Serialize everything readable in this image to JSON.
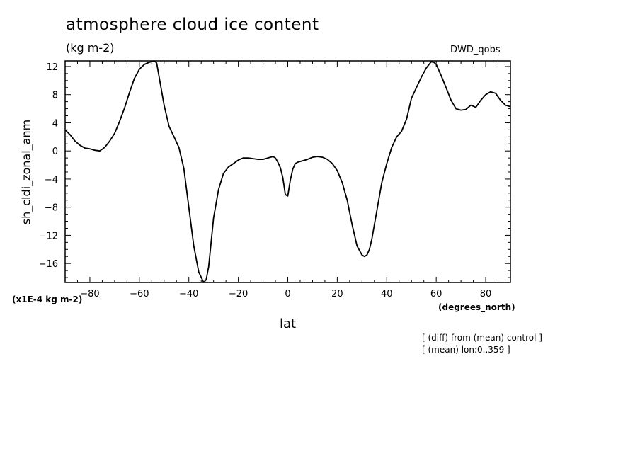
{
  "chart_data": {
    "type": "line",
    "title": "atmosphere cloud ice content",
    "units": "(kg m-2)",
    "source_label": "DWD_qobs",
    "ylabel": "sh_cldi_zonal_anm",
    "yscale_label": "(x1E-4 kg m-2)",
    "xlabel": "lat",
    "xunits": "(degrees_north)",
    "notes": [
      "[ (diff) from (mean) control ]",
      "[ (mean) lon:0..359 ]"
    ],
    "xlim": [
      -90,
      90
    ],
    "ylim": [
      -18.7,
      12.8
    ],
    "xticks": [
      -80,
      -60,
      -40,
      -20,
      0,
      20,
      40,
      60,
      80
    ],
    "yticks": [
      12,
      8,
      4,
      0,
      -4,
      -8,
      -12,
      -16
    ],
    "grid": false,
    "series": [
      {
        "values_x": [
          -90,
          -88,
          -86,
          -84,
          -82,
          -80,
          -78,
          -76,
          -74,
          -72,
          -70,
          -68,
          -66,
          -64,
          -62,
          -60,
          -58,
          -56,
          -54,
          -53,
          -52,
          -50,
          -48,
          -46,
          -44,
          -42,
          -40,
          -38,
          -36,
          -34,
          -33,
          -32,
          -31,
          -30,
          -28,
          -26,
          -24,
          -22,
          -20,
          -18,
          -16,
          -14,
          -12,
          -10,
          -8,
          -6,
          -5,
          -4,
          -3,
          -2,
          -1,
          0,
          1,
          2,
          3,
          4,
          6,
          8,
          10,
          12,
          14,
          16,
          18,
          20,
          22,
          24,
          26,
          28,
          30,
          31,
          32,
          33,
          34,
          36,
          38,
          40,
          42,
          44,
          46,
          48,
          50,
          52,
          54,
          56,
          58,
          59,
          60,
          62,
          64,
          66,
          68,
          70,
          72,
          74,
          76,
          78,
          80,
          82,
          84,
          86,
          88,
          90
        ],
        "values_y": [
          3.0,
          2.3,
          1.4,
          0.8,
          0.4,
          0.3,
          0.1,
          0.0,
          0.5,
          1.4,
          2.5,
          4.2,
          6.1,
          8.3,
          10.3,
          11.6,
          12.3,
          12.6,
          12.8,
          12.5,
          10.5,
          6.5,
          3.5,
          2.0,
          0.5,
          -2.5,
          -8.0,
          -13.5,
          -17.2,
          -18.7,
          -18.3,
          -16.5,
          -13.0,
          -9.5,
          -5.5,
          -3.2,
          -2.3,
          -1.8,
          -1.3,
          -1.0,
          -1.0,
          -1.1,
          -1.2,
          -1.2,
          -1.0,
          -0.8,
          -1.0,
          -1.6,
          -2.4,
          -3.8,
          -6.2,
          -6.4,
          -4.2,
          -2.6,
          -1.8,
          -1.6,
          -1.4,
          -1.2,
          -0.9,
          -0.8,
          -0.9,
          -1.2,
          -1.8,
          -2.8,
          -4.5,
          -7.0,
          -10.5,
          -13.5,
          -14.8,
          -15.0,
          -14.8,
          -14.0,
          -12.5,
          -8.5,
          -4.5,
          -1.8,
          0.5,
          2.0,
          2.8,
          4.5,
          7.5,
          9.0,
          10.5,
          11.8,
          12.7,
          12.6,
          12.3,
          10.7,
          9.0,
          7.2,
          6.0,
          5.8,
          5.9,
          6.5,
          6.2,
          7.2,
          8.0,
          8.4,
          8.2,
          7.2,
          6.5,
          6.3
        ]
      }
    ]
  }
}
